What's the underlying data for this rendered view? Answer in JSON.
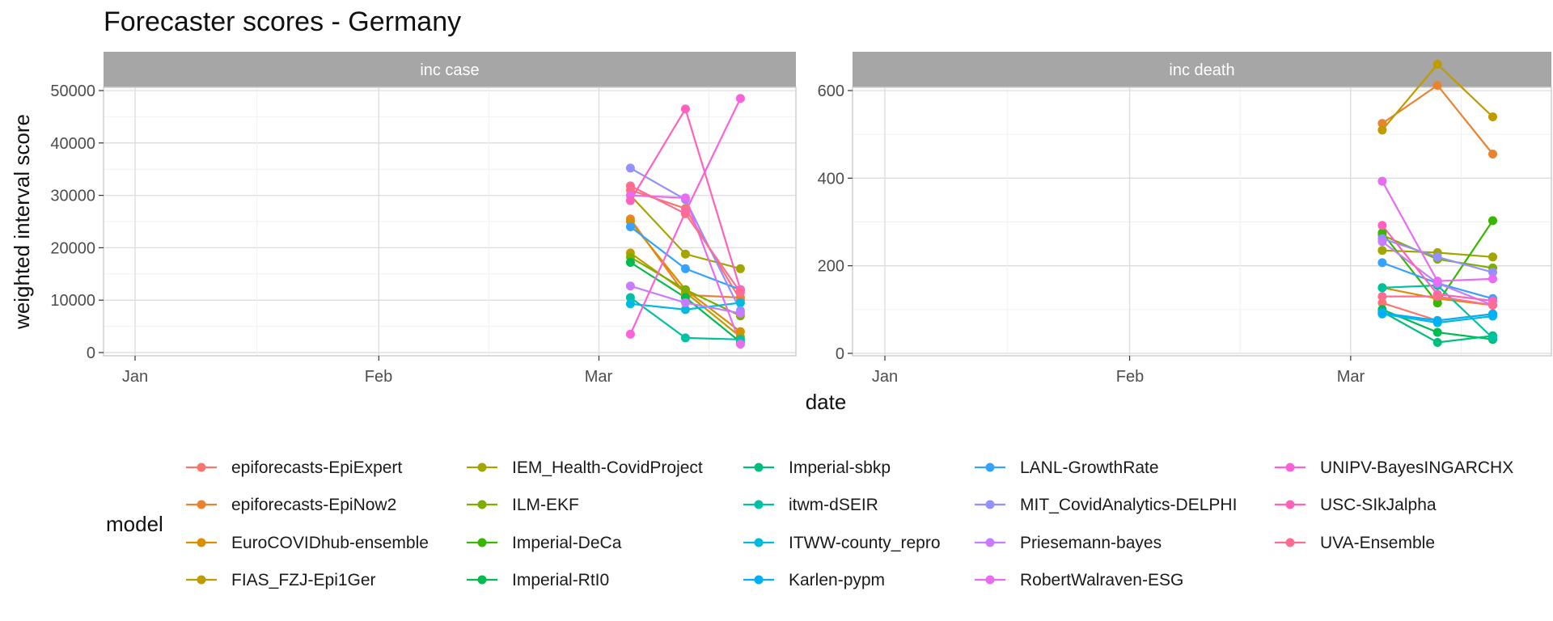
{
  "chart_data": {
    "type": "line",
    "title": "Forecaster scores - Germany",
    "xlabel": "date",
    "ylabel": "weighted interval score",
    "legend_title": "model",
    "legend_position": "bottom",
    "x_tick_labels": [
      "Jan",
      "Feb",
      "Mar"
    ],
    "x_dates": [
      "2021-03-08",
      "2021-03-15",
      "2021-03-22"
    ],
    "models": [
      {
        "name": "epiforecasts-EpiExpert",
        "color": "#F8766D"
      },
      {
        "name": "epiforecasts-EpiNow2",
        "color": "#EA8331"
      },
      {
        "name": "EuroCOVIDhub-ensemble",
        "color": "#D89000"
      },
      {
        "name": "FIAS_FZJ-Epi1Ger",
        "color": "#C09B00"
      },
      {
        "name": "IEM_Health-CovidProject",
        "color": "#A3A500"
      },
      {
        "name": "ILM-EKF",
        "color": "#7CAE00"
      },
      {
        "name": "Imperial-DeCa",
        "color": "#39B600"
      },
      {
        "name": "Imperial-RtI0",
        "color": "#00BB4E"
      },
      {
        "name": "Imperial-sbkp",
        "color": "#00BF7D"
      },
      {
        "name": "itwm-dSEIR",
        "color": "#00C1A3"
      },
      {
        "name": "ITWW-county_repro",
        "color": "#00BAE0"
      },
      {
        "name": "Karlen-pypm",
        "color": "#00B0F6"
      },
      {
        "name": "LANL-GrowthRate",
        "color": "#35A2FF"
      },
      {
        "name": "MIT_CovidAnalytics-DELPHI",
        "color": "#9590FF"
      },
      {
        "name": "Priesemann-bayes",
        "color": "#C77CFF"
      },
      {
        "name": "RobertWalraven-ESG",
        "color": "#E76BF3"
      },
      {
        "name": "UNIPV-BayesINGARCHX",
        "color": "#FA62DB"
      },
      {
        "name": "USC-SIkJalpha",
        "color": "#FF62BC"
      },
      {
        "name": "UVA-Ensemble",
        "color": "#FF6C91"
      }
    ],
    "panels": [
      {
        "strip_label": "inc case",
        "ylim": [
          0,
          51000
        ],
        "y_ticks": [
          0,
          10000,
          20000,
          30000,
          40000,
          50000
        ],
        "y_tick_labels": [
          "0",
          "10000",
          "20000",
          "30000",
          "40000",
          "50000"
        ],
        "series": [
          {
            "model": "epiforecasts-EpiExpert",
            "values": [
              31000,
              27500,
              10000
            ]
          },
          {
            "model": "epiforecasts-EpiNow2",
            "values": [
              25500,
              11000,
              10500
            ]
          },
          {
            "model": "EuroCOVIDhub-ensemble",
            "values": [
              25000,
              12000,
              4000
            ]
          },
          {
            "model": "FIAS_FZJ-Epi1Ger",
            "values": [
              19000,
              11500,
              3000
            ]
          },
          {
            "model": "IEM_Health-CovidProject",
            "values": [
              30000,
              18800,
              16000
            ]
          },
          {
            "model": "ILM-EKF",
            "values": [
              18200,
              12000,
              7000
            ]
          },
          {
            "model": "Imperial-RtI0",
            "values": [
              17200,
              10500,
              2000
            ]
          },
          {
            "model": "itwm-dSEIR",
            "values": [
              10500,
              2800,
              2500
            ]
          },
          {
            "model": "ITWW-county_repro",
            "values": [
              9300,
              8200,
              9500
            ]
          },
          {
            "model": "LANL-GrowthRate",
            "values": [
              24000,
              16000,
              12000
            ]
          },
          {
            "model": "MIT_CovidAnalytics-DELPHI",
            "values": [
              35200,
              29200,
              8000
            ]
          },
          {
            "model": "Priesemann-bayes",
            "values": [
              12700,
              9500,
              7500
            ]
          },
          {
            "model": "RobertWalraven-ESG",
            "values": [
              30000,
              29500,
              1600
            ]
          },
          {
            "model": "UNIPV-BayesINGARCHX",
            "values": [
              3500,
              26800,
              48500
            ]
          },
          {
            "model": "USC-SIkJalpha",
            "values": [
              29000,
              46500,
              12000
            ]
          },
          {
            "model": "UVA-Ensemble",
            "values": [
              31800,
              26500,
              11500
            ]
          }
        ]
      },
      {
        "strip_label": "inc death",
        "ylim": [
          0,
          700
        ],
        "y_ticks": [
          0,
          200,
          400,
          600
        ],
        "y_tick_labels": [
          "0",
          "200",
          "400",
          "600"
        ],
        "series": [
          {
            "model": "epiforecasts-EpiExpert",
            "values": [
              115,
              75,
              90
            ]
          },
          {
            "model": "epiforecasts-EpiNow2",
            "values": [
              525,
              612,
              455
            ]
          },
          {
            "model": "EuroCOVIDhub-ensemble",
            "values": [
              150,
              125,
              110
            ]
          },
          {
            "model": "FIAS_FZJ-Epi1Ger",
            "values": [
              510,
              660,
              540
            ]
          },
          {
            "model": "IEM_Health-CovidProject",
            "values": [
              235,
              230,
              220
            ]
          },
          {
            "model": "ILM-EKF",
            "values": [
              270,
              215,
              195
            ]
          },
          {
            "model": "Imperial-DeCa",
            "values": [
              275,
              115,
              303
            ]
          },
          {
            "model": "Imperial-RtI0",
            "values": [
              100,
              48,
              32
            ]
          },
          {
            "model": "Imperial-sbkp",
            "values": [
              95,
              25,
              40
            ]
          },
          {
            "model": "itwm-dSEIR",
            "values": [
              150,
              155,
              35
            ]
          },
          {
            "model": "ITWW-county_repro",
            "values": [
              90,
              70,
              85
            ]
          },
          {
            "model": "Karlen-pypm",
            "values": [
              92,
              75,
              90
            ]
          },
          {
            "model": "LANL-GrowthRate",
            "values": [
              207,
              160,
              125
            ]
          },
          {
            "model": "MIT_CovidAnalytics-DELPHI",
            "values": [
              262,
              220,
              185
            ]
          },
          {
            "model": "Priesemann-bayes",
            "values": [
              255,
              160,
              110
            ]
          },
          {
            "model": "RobertWalraven-ESG",
            "values": [
              393,
              165,
              170
            ]
          },
          {
            "model": "USC-SIkJalpha",
            "values": [
              292,
              135,
              120
            ]
          },
          {
            "model": "UVA-Ensemble",
            "values": [
              130,
              130,
              110
            ]
          }
        ]
      }
    ]
  }
}
